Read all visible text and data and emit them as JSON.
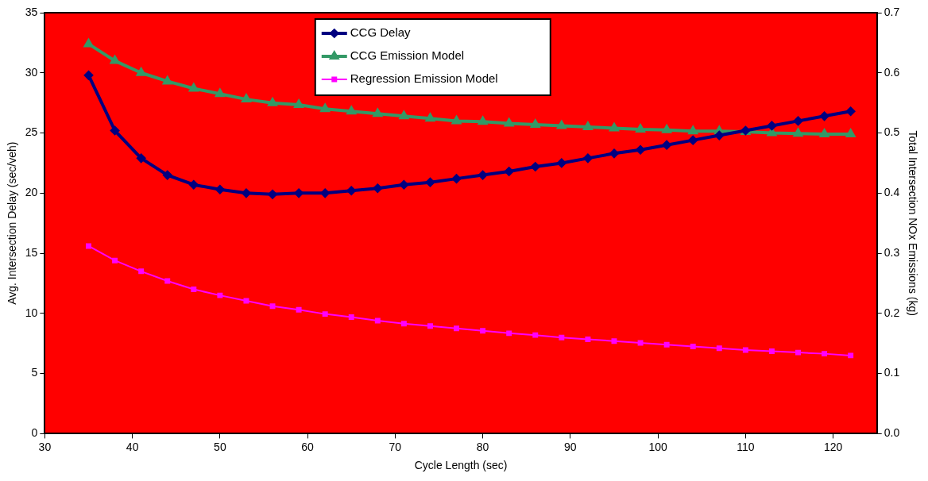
{
  "chart_data": {
    "type": "line",
    "xlabel": "Cycle Length (sec)",
    "ylabel": "Avg. Intersection Delay (sec/veh)",
    "y2label": "Total Intersection NOx Emissions (kg)",
    "x": [
      35,
      38,
      41,
      44,
      47,
      50,
      53,
      56,
      59,
      62,
      65,
      68,
      71,
      74,
      77,
      80,
      83,
      86,
      89,
      92,
      95,
      98,
      101,
      104,
      107,
      110,
      113,
      116,
      119,
      122
    ],
    "xlim": [
      30,
      125
    ],
    "xticks": [
      30,
      40,
      50,
      60,
      70,
      80,
      90,
      100,
      110,
      120
    ],
    "ylim": [
      0,
      35
    ],
    "yticks": [
      0,
      5,
      10,
      15,
      20,
      25,
      30,
      35
    ],
    "y2lim": [
      0,
      0.7
    ],
    "y2ticks": [
      {
        "value": 0,
        "label": "0.0"
      },
      0.1,
      0.2,
      0.3,
      0.4,
      0.5,
      0.6,
      0.7
    ],
    "grid": false,
    "legend": "top",
    "line_style": "solid",
    "series": [
      {
        "name": "CCG Delay",
        "color": "#000080",
        "marker": "diamond",
        "values": [
          29.8,
          25.2,
          22.9,
          21.5,
          20.7,
          20.3,
          20.0,
          19.9,
          20.0,
          20.0,
          20.2,
          20.4,
          20.7,
          20.9,
          21.2,
          21.5,
          21.8,
          22.2,
          22.5,
          22.9,
          23.3,
          23.6,
          24.0,
          24.4,
          24.8,
          25.2,
          25.6,
          26.0,
          26.4,
          26.8
        ]
      },
      {
        "name": "CCG Emission Model",
        "color": "#339966",
        "marker": "triangle",
        "axis": "y2",
        "values": [
          0.648,
          0.62,
          0.6,
          0.586,
          0.574,
          0.565,
          0.556,
          0.55,
          0.547,
          0.54,
          0.536,
          0.532,
          0.528,
          0.524,
          0.52,
          0.519,
          0.516,
          0.514,
          0.512,
          0.51,
          0.508,
          0.506,
          0.505,
          0.503,
          0.503,
          0.502,
          0.5,
          0.499,
          0.498,
          0.498
        ]
      },
      {
        "name": "Regression Emission Model",
        "color": "#ff00ff",
        "marker": "square",
        "axis": "y2",
        "values": [
          0.312,
          0.288,
          0.27,
          0.254,
          0.24,
          0.23,
          0.221,
          0.212,
          0.206,
          0.199,
          0.194,
          0.188,
          0.183,
          0.179,
          0.175,
          0.171,
          0.167,
          0.164,
          0.16,
          0.157,
          0.154,
          0.151,
          0.148,
          0.145,
          0.142,
          0.139,
          0.137,
          0.135,
          0.133,
          0.13
        ]
      }
    ]
  }
}
